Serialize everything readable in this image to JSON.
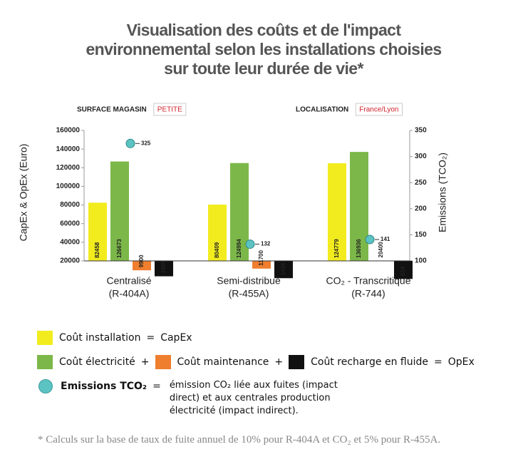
{
  "header": {
    "title": [
      "Visualisation des coûts et de l'impact",
      "environnemental selon les installations choisies",
      "sur toute leur durée de vie*"
    ]
  },
  "chart_data": {
    "type": "bar",
    "filters": [
      {
        "label": "SURFACE MAGASIN",
        "value": "PETITE"
      },
      {
        "label": "LOCALISATION",
        "value": "France/Lyon"
      }
    ],
    "categories": [
      [
        "Centralisé",
        "(R-404A)"
      ],
      [
        "Semi-distribué",
        "(R-455A)"
      ],
      [
        "CO₂ - Transcritique",
        "(R-744)"
      ]
    ],
    "series": [
      {
        "name": "Coût installation",
        "color": "#f2ec1f",
        "values": [
          82458,
          80409,
          124779
        ]
      },
      {
        "name": "Coût électricité",
        "color": "#7cb849",
        "values": [
          126673,
          124994,
          136936
        ]
      },
      {
        "name": "Coût maintenance",
        "color": "#ef7e2e",
        "values": [
          9900,
          11700,
          20400
        ]
      },
      {
        "name": "Coût recharge en fluide",
        "color": "#111111",
        "values": [
          3465,
          1436,
          624
        ]
      },
      {
        "name": "Emissions TCO₂",
        "color": "#5cc3c3",
        "type": "scatter",
        "axis": "y2",
        "values": [
          325,
          132,
          141
        ]
      }
    ],
    "ylabel": "CapEx & OpEx (Euro)",
    "y2label": "Emissions (TCO₂)",
    "ylim": [
      20000,
      160000
    ],
    "yticks": [
      20000,
      40000,
      60000,
      80000,
      100000,
      120000,
      140000,
      160000
    ],
    "y2lim": [
      100,
      350
    ],
    "y2ticks": [
      100,
      150,
      200,
      250,
      300,
      350
    ],
    "grid": false,
    "legend": {
      "operators": [
        "=",
        "+",
        "+",
        "=",
        "="
      ],
      "results": [
        "CapEx",
        "OpEx"
      ],
      "emissions_note": "émission CO₂ liée aux fuites (impact direct) et aux centrales production électricité (impact indirect)."
    }
  },
  "footnote": "* Calculs sur la base de taux de fuite annuel de 10% pour R-404A et CO₂ et 5% pour R-455A."
}
